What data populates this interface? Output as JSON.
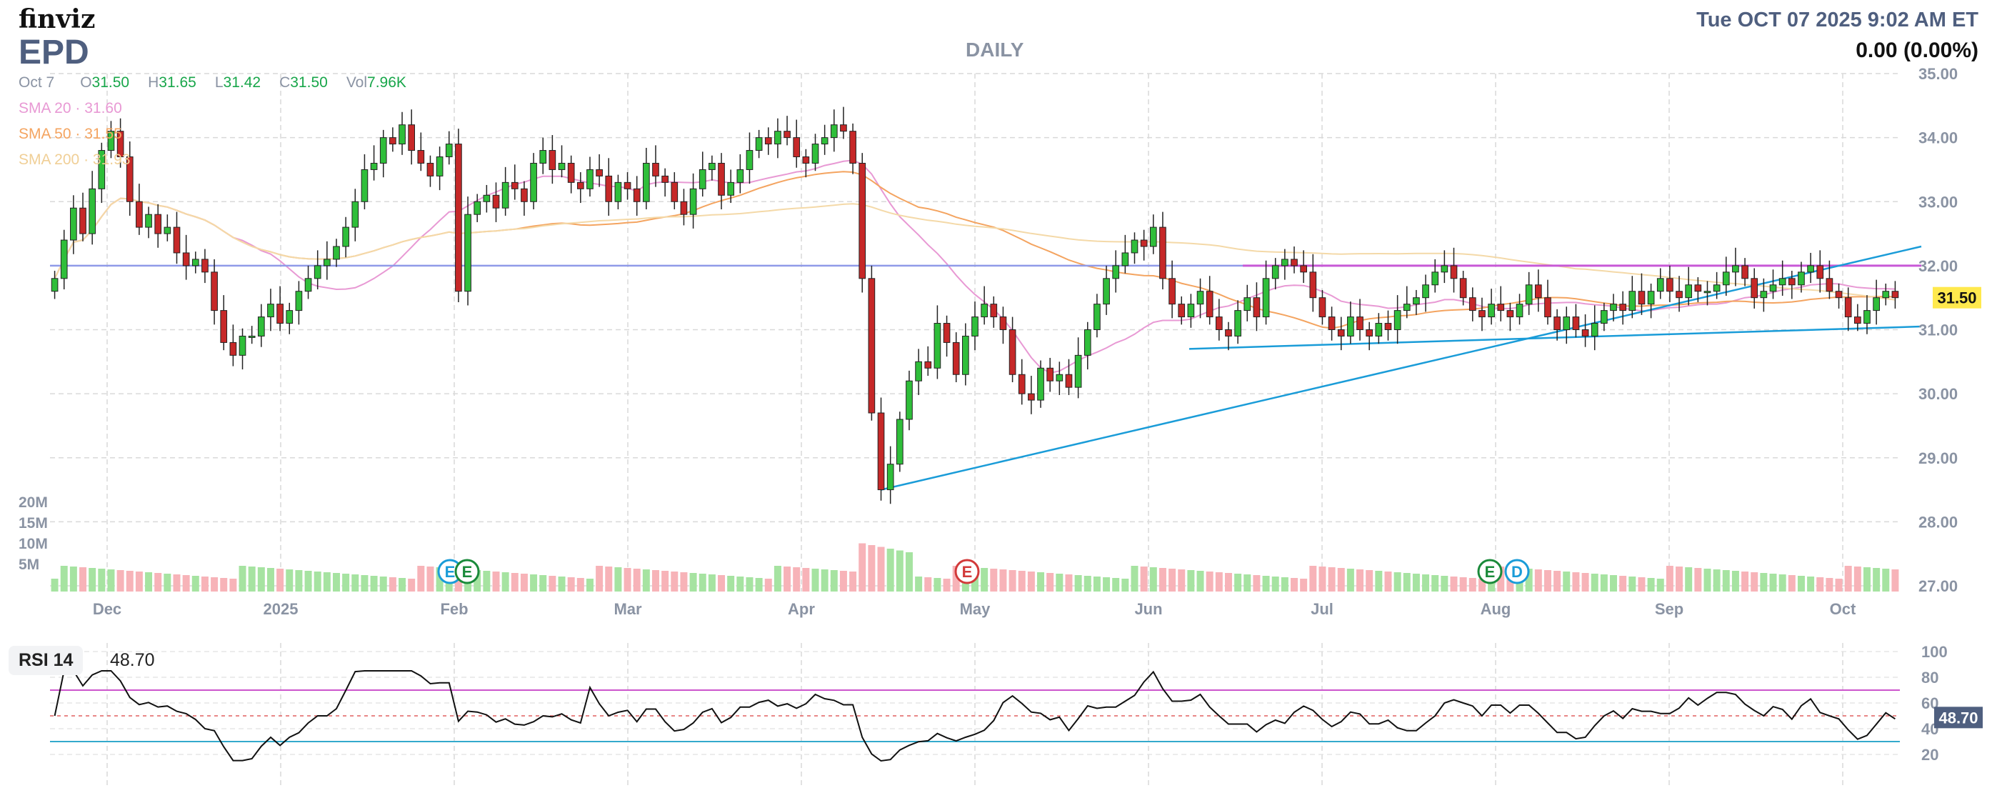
{
  "header": {
    "logo": "finviz",
    "ticker": "EPD",
    "timeframe": "DAILY",
    "datetime": "Tue OCT 07 2025 9:02 AM ET",
    "change": "0.00 (0.00%)"
  },
  "ohlc": {
    "date": "Oct 7",
    "o_label": "O",
    "o": "31.50",
    "h_label": "H",
    "h": "31.65",
    "l_label": "L",
    "l": "31.42",
    "c_label": "C",
    "c": "31.50",
    "vol_label": "Vol",
    "vol": "7.96K"
  },
  "sma": [
    {
      "label": "SMA 20",
      "value": "31.60",
      "color": "#e899d4"
    },
    {
      "label": "SMA 50",
      "value": "31.55",
      "color": "#f4a460"
    },
    {
      "label": "SMA 200",
      "value": "31.93",
      "color": "#f4d9a8"
    }
  ],
  "rsi": {
    "label": "RSI 14",
    "value": "48.70"
  },
  "colors": {
    "up": "#2fbe3a",
    "down": "#c62828",
    "vol_up": "#a6e3a1",
    "vol_down": "#f7b3b8",
    "trendline": "#1a9cd8",
    "horizontal": "#c858d6",
    "horizontal_blue": "#8f9ae8",
    "price_label_bg": "#ffe94d",
    "rsi_line": "#111111",
    "rsi_70": "#cc55cc",
    "rsi_30": "#33aacc"
  },
  "chart_data": {
    "type": "candlestick",
    "y_axis": {
      "ticks": [
        "35.00",
        "34.00",
        "33.00",
        "32.00",
        "31.00",
        "30.00",
        "29.00",
        "28.00",
        "27.00"
      ],
      "range": [
        27,
        35
      ]
    },
    "x_axis": {
      "labels": [
        "Dec",
        "2025",
        "Feb",
        "Mar",
        "Apr",
        "May",
        "Jun",
        "Jul",
        "Aug",
        "Sep",
        "Oct"
      ]
    },
    "volume_axis": {
      "ticks": [
        "20M",
        "15M",
        "10M",
        "5M"
      ]
    },
    "last_price": "31.50",
    "rsi_axis": {
      "ticks": [
        "100",
        "80",
        "60",
        "40",
        "20"
      ],
      "range": [
        0,
        100
      ]
    },
    "events": [
      "E",
      "E",
      "E",
      "E",
      "D"
    ],
    "closes": [
      31.8,
      32.4,
      32.9,
      32.5,
      33.2,
      33.8,
      34.1,
      33.7,
      33.0,
      32.6,
      32.8,
      32.5,
      32.6,
      32.2,
      32.0,
      32.1,
      31.9,
      31.3,
      30.8,
      30.6,
      30.9,
      30.9,
      31.2,
      31.4,
      31.1,
      31.3,
      31.6,
      31.8,
      32.0,
      32.1,
      32.3,
      32.6,
      33.0,
      33.5,
      33.6,
      34.0,
      33.9,
      34.2,
      33.8,
      33.6,
      33.4,
      33.7,
      33.9,
      31.6,
      32.8,
      33.0,
      33.1,
      32.9,
      33.3,
      33.2,
      33.0,
      33.6,
      33.8,
      33.5,
      33.6,
      33.3,
      33.2,
      33.5,
      33.4,
      33.0,
      33.3,
      33.2,
      33.0,
      33.6,
      33.4,
      33.3,
      33.0,
      32.8,
      33.2,
      33.5,
      33.6,
      33.1,
      33.3,
      33.5,
      33.8,
      34.0,
      33.9,
      34.1,
      34.0,
      33.7,
      33.6,
      33.9,
      34.0,
      34.2,
      34.1,
      33.6,
      31.8,
      29.7,
      28.5,
      28.9,
      29.6,
      30.2,
      30.5,
      30.4,
      31.1,
      30.8,
      30.3,
      30.9,
      31.2,
      31.4,
      31.2,
      31.0,
      30.3,
      30.0,
      29.9,
      30.4,
      30.2,
      30.3,
      30.1,
      30.6,
      31.0,
      31.4,
      31.8,
      32.0,
      32.2,
      32.4,
      32.3,
      32.6,
      31.8,
      31.4,
      31.2,
      31.4,
      31.6,
      31.2,
      31.0,
      30.9,
      31.3,
      31.5,
      31.2,
      31.8,
      32.0,
      32.1,
      32.0,
      31.9,
      31.5,
      31.2,
      31.0,
      30.9,
      31.2,
      31.0,
      30.9,
      31.1,
      31.0,
      31.3,
      31.4,
      31.5,
      31.7,
      31.9,
      32.0,
      31.8,
      31.5,
      31.3,
      31.2,
      31.4,
      31.3,
      31.2,
      31.4,
      31.7,
      31.5,
      31.2,
      31.0,
      31.2,
      31.0,
      30.9,
      31.1,
      31.3,
      31.4,
      31.3,
      31.6,
      31.4,
      31.6,
      31.8,
      31.6,
      31.5,
      31.7,
      31.6,
      31.6,
      31.7,
      31.9,
      32.0,
      31.8,
      31.5,
      31.6,
      31.7,
      31.8,
      31.7,
      31.9,
      32.0,
      31.8,
      31.6,
      31.5,
      31.2,
      31.1,
      31.3,
      31.5,
      31.6,
      31.5
    ]
  }
}
